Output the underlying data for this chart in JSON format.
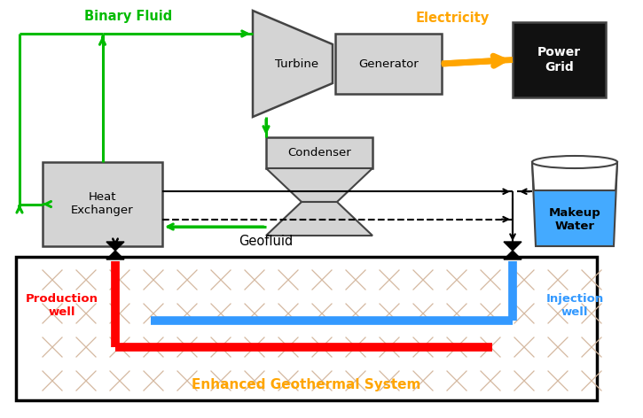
{
  "fig_width": 7.25,
  "fig_height": 4.72,
  "dpi": 100,
  "bg_color": "#ffffff",
  "colors": {
    "green": "#00BB00",
    "orange_arrow": "#FFA500",
    "red_pipe": "#FF0000",
    "blue_pipe": "#3399FF",
    "black": "#000000",
    "dark_gray": "#444444",
    "box_fill": "#D4D4D4",
    "power_grid_fill": "#111111",
    "water_blue": "#44AAFF",
    "water_top": "#E8E8E8"
  },
  "labels": {
    "binary_fluid": "Binary Fluid",
    "electricity": "Electricity",
    "geofluid": "Geofluid",
    "production_well": "Production\nwell",
    "injection_well": "Injection\nwell",
    "makeup_water": "Makeup\nWater",
    "egs_title": "Enhanced Geothermal System",
    "turbine": "Turbine",
    "generator": "Generator",
    "condenser": "Condenser",
    "heat_exchanger": "Heat\nExchanger",
    "power_grid": "Power\nGrid"
  }
}
